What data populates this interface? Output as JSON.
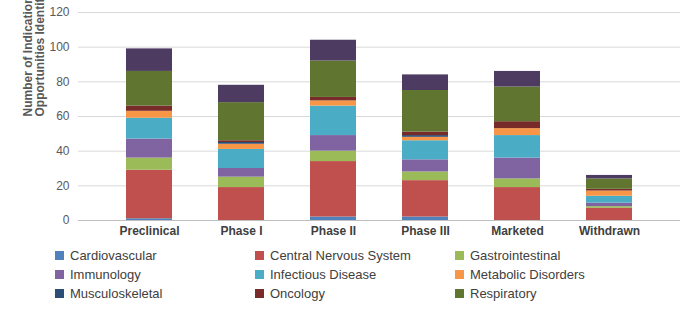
{
  "chart_data": {
    "type": "bar",
    "stacked": true,
    "grid": true,
    "legend": "bottom",
    "ylabel": "Number of Indication Extension Opportunities Identified",
    "categories": [
      "Preclinical",
      "Phase I",
      "Phase II",
      "Phase III",
      "Marketed",
      "Withdrawn"
    ],
    "ylim": [
      0,
      120
    ],
    "yticks": [
      0,
      20,
      40,
      60,
      80,
      100,
      120
    ],
    "series": [
      {
        "name": "Cardiovascular",
        "color": "#4f81bd",
        "values": [
          1,
          0,
          2,
          2,
          0,
          0
        ]
      },
      {
        "name": "Central Nervous System",
        "color": "#c0504d",
        "values": [
          28,
          19,
          32,
          21,
          19,
          7
        ]
      },
      {
        "name": "Gastrointestinal",
        "color": "#9bbb59",
        "values": [
          7,
          6,
          6,
          5,
          5,
          1
        ]
      },
      {
        "name": "Immunology",
        "color": "#8064a2",
        "values": [
          11,
          5,
          9,
          7,
          12,
          2
        ]
      },
      {
        "name": "Infectious Disease",
        "color": "#4bacc6",
        "values": [
          12,
          11,
          17,
          11,
          13,
          4
        ]
      },
      {
        "name": "Metabolic Disorders",
        "color": "#f79646",
        "values": [
          4,
          3,
          3,
          2,
          4,
          3
        ]
      },
      {
        "name": "Musculoskeletal",
        "color": "#2c4d75",
        "values": [
          0,
          1,
          0,
          1,
          0,
          0
        ]
      },
      {
        "name": "Oncology",
        "color": "#772c2a",
        "values": [
          3,
          1,
          2,
          2,
          4,
          1
        ]
      },
      {
        "name": "Respiratory",
        "color": "#5f7530",
        "values": [
          20,
          22,
          21,
          24,
          20,
          6
        ]
      },
      {
        "name": null,
        "color": "#4d3b62",
        "values": [
          13,
          10,
          12,
          9,
          9,
          2
        ]
      }
    ]
  }
}
